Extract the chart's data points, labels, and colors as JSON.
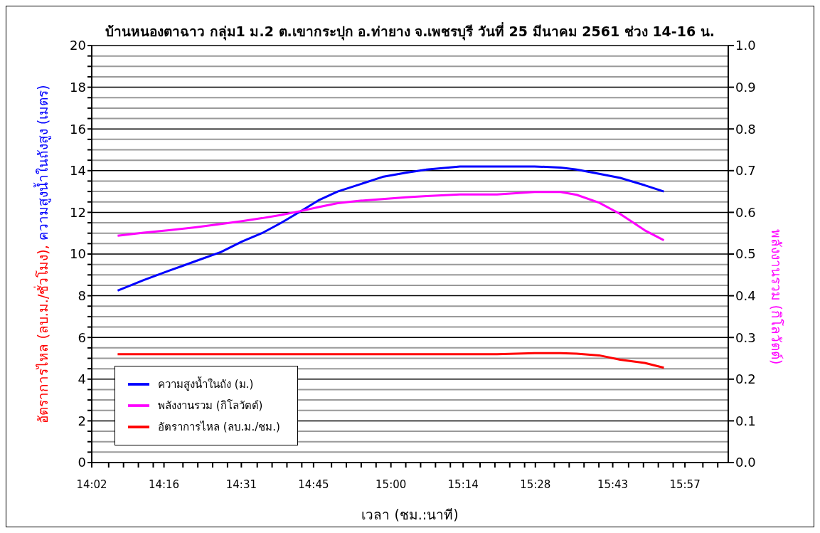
{
  "chart_data": {
    "type": "line",
    "title": "บ้านหนองตาฉาว กลุ่ม1 ม.2 ต.เขากระปุก อ.ท่ายาง จ.เพชรบุรี วันที่ 25 มีนาคม 2561 ช่วง 14-16 น.",
    "xlabel": "เวลา (ชม.:นาที)",
    "ylabel": "อัตราการไหล (ลบ.ม./ชั่วโมง), ความสูงน้ำในถังสูง (เมตร)",
    "y2label": "พลังงานรวม (กิโลวัตต์)",
    "x": [
      14.117,
      14.201,
      14.283,
      14.367,
      14.451,
      14.519,
      14.583,
      14.646,
      14.708,
      14.769,
      14.828,
      14.901,
      14.973,
      15.048,
      15.116,
      15.223,
      15.343,
      15.464,
      15.548,
      15.6,
      15.673,
      15.741,
      15.82,
      15.882
    ],
    "series": [
      {
        "name": "อัตราการไหล (ลบ.ม./ชม.)",
        "color": "#ff0000",
        "values": [
          5.2,
          5.2,
          5.2,
          5.2,
          5.2,
          5.2,
          5.2,
          5.2,
          5.2,
          5.2,
          5.2,
          5.2,
          5.2,
          5.2,
          5.2,
          5.2,
          5.2,
          5.25,
          5.25,
          5.22,
          5.14,
          4.93,
          4.78,
          4.55
        ]
      },
      {
        "name": "ความสูงน้ำในถัง (ม.)",
        "color": "#0000ff",
        "values": [
          8.25,
          8.75,
          9.2,
          9.65,
          10.1,
          10.6,
          11.0,
          11.5,
          12.05,
          12.6,
          13.0,
          13.35,
          13.7,
          13.9,
          14.05,
          14.2,
          14.2,
          14.2,
          14.15,
          14.05,
          13.85,
          13.65,
          13.3,
          13.0
        ]
      },
      {
        "name": "พลังงานรวม (กิโลวัตต์)",
        "color": "#ff00ff",
        "axis": "y2",
        "values": [
          0.544,
          0.551,
          0.557,
          0.564,
          0.572,
          0.579,
          0.586,
          0.594,
          0.603,
          0.613,
          0.622,
          0.628,
          0.632,
          0.636,
          0.639,
          0.643,
          0.643,
          0.649,
          0.649,
          0.642,
          0.623,
          0.596,
          0.557,
          0.533
        ]
      }
    ],
    "xlim": [
      14.0333,
      16.09
    ],
    "xticks": [
      {
        "value": 14.0333,
        "label": "14:02"
      },
      {
        "value": 14.088,
        "label": null
      },
      {
        "value": 14.136,
        "label": null
      },
      {
        "value": 14.184,
        "label": null
      },
      {
        "value": 14.232,
        "label": null
      },
      {
        "value": 14.2667,
        "label": "14:16"
      },
      {
        "value": 14.328,
        "label": null
      },
      {
        "value": 14.376,
        "label": null
      },
      {
        "value": 14.424,
        "label": null
      },
      {
        "value": 14.472,
        "label": null
      },
      {
        "value": 14.5167,
        "label": "14:31"
      },
      {
        "value": 14.568,
        "label": null
      },
      {
        "value": 14.616,
        "label": null
      },
      {
        "value": 14.664,
        "label": null
      },
      {
        "value": 14.712,
        "label": null
      },
      {
        "value": 14.75,
        "label": "14:45"
      },
      {
        "value": 14.808,
        "label": null
      },
      {
        "value": 14.856,
        "label": null
      },
      {
        "value": 14.904,
        "label": null
      },
      {
        "value": 14.952,
        "label": null
      },
      {
        "value": 15.0,
        "label": "15:00"
      },
      {
        "value": 15.048,
        "label": null
      },
      {
        "value": 15.096,
        "label": null
      },
      {
        "value": 15.144,
        "label": null
      },
      {
        "value": 15.192,
        "label": null
      },
      {
        "value": 15.2333,
        "label": "15:14"
      },
      {
        "value": 15.288,
        "label": null
      },
      {
        "value": 15.336,
        "label": null
      },
      {
        "value": 15.384,
        "label": null
      },
      {
        "value": 15.432,
        "label": null
      },
      {
        "value": 15.4667,
        "label": "15:28"
      },
      {
        "value": 15.528,
        "label": null
      },
      {
        "value": 15.576,
        "label": null
      },
      {
        "value": 15.624,
        "label": null
      },
      {
        "value": 15.672,
        "label": null
      },
      {
        "value": 15.7167,
        "label": "15:43"
      },
      {
        "value": 15.768,
        "label": null
      },
      {
        "value": 15.816,
        "label": null
      },
      {
        "value": 15.864,
        "label": null
      },
      {
        "value": 15.912,
        "label": null
      },
      {
        "value": 15.95,
        "label": "15:57"
      },
      {
        "value": 16.008,
        "label": null
      },
      {
        "value": 16.056,
        "label": null
      }
    ],
    "ylim": [
      0,
      20
    ],
    "yticks": [
      0,
      {
        "value": 0.5,
        "label": null
      },
      {
        "value": 1,
        "label": null
      },
      {
        "value": 1.5,
        "label": null
      },
      2,
      {
        "value": 2.5,
        "label": null
      },
      {
        "value": 3,
        "label": null
      },
      {
        "value": 3.5,
        "label": null
      },
      4,
      {
        "value": 4.5,
        "label": null
      },
      {
        "value": 5,
        "label": null
      },
      {
        "value": 5.5,
        "label": null
      },
      6,
      {
        "value": 6.5,
        "label": null
      },
      {
        "value": 7,
        "label": null
      },
      {
        "value": 7.5,
        "label": null
      },
      8,
      {
        "value": 8.5,
        "label": null
      },
      {
        "value": 9,
        "label": null
      },
      {
        "value": 9.5,
        "label": null
      },
      10,
      {
        "value": 10.5,
        "label": null
      },
      {
        "value": 11,
        "label": null
      },
      {
        "value": 11.5,
        "label": null
      },
      12,
      {
        "value": 12.5,
        "label": null
      },
      {
        "value": 13,
        "label": null
      },
      {
        "value": 13.5,
        "label": null
      },
      14,
      {
        "value": 14.5,
        "label": null
      },
      {
        "value": 15,
        "label": null
      },
      {
        "value": 15.5,
        "label": null
      },
      16,
      {
        "value": 16.5,
        "label": null
      },
      {
        "value": 17,
        "label": null
      },
      {
        "value": 17.5,
        "label": null
      },
      18,
      {
        "value": 18.5,
        "label": null
      },
      {
        "value": 19,
        "label": null
      },
      {
        "value": 19.5,
        "label": null
      },
      20
    ],
    "y2lim": [
      0,
      1
    ],
    "y2ticks": [
      {
        "value": 0,
        "label": "0.0"
      },
      {
        "value": 0.1,
        "label": "0.1"
      },
      {
        "value": 0.2,
        "label": "0.2"
      },
      {
        "value": 0.3,
        "label": "0.3"
      },
      {
        "value": 0.4,
        "label": "0.4"
      },
      {
        "value": 0.5,
        "label": "0.5"
      },
      {
        "value": 0.6,
        "label": "0.6"
      },
      {
        "value": 0.7,
        "label": "0.7"
      },
      {
        "value": 0.8,
        "label": "0.8"
      },
      {
        "value": 0.9,
        "label": "0.9"
      },
      {
        "value": 1,
        "label": "1.0"
      }
    ],
    "grid": "y",
    "legend": "bottom left",
    "marker": "none",
    "line_style": "solid"
  }
}
